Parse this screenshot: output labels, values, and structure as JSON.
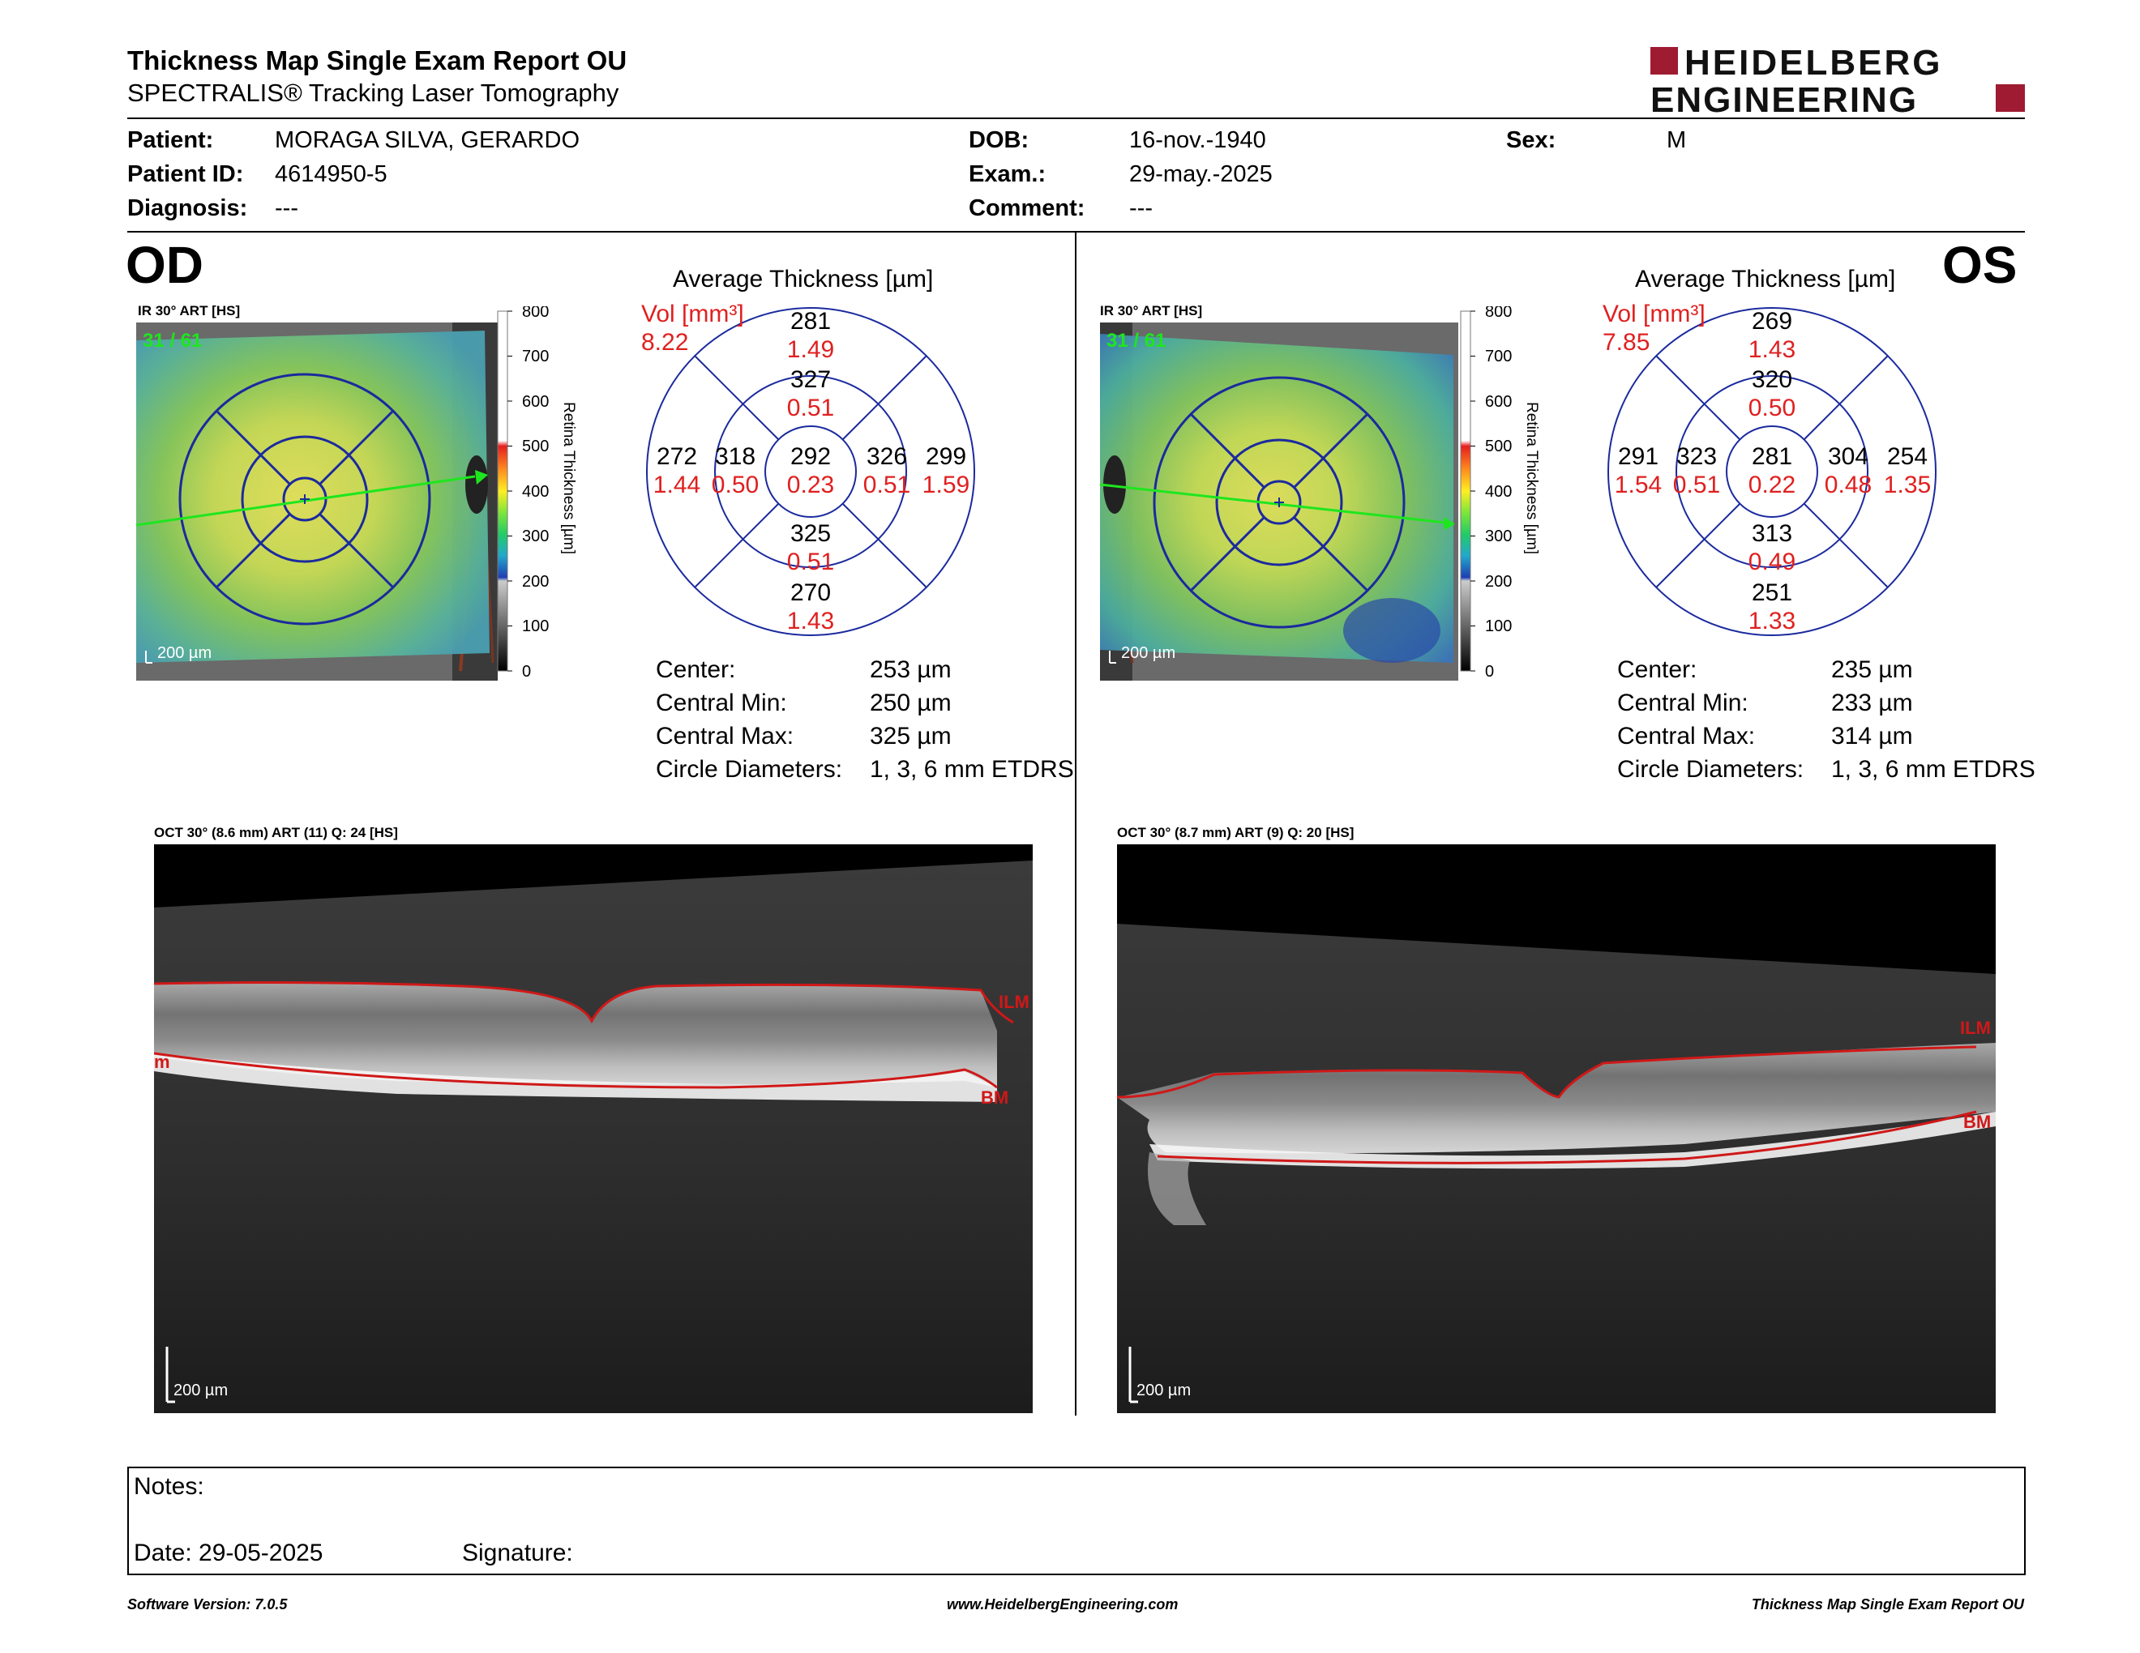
{
  "header": {
    "title": "Thickness Map Single Exam Report OU",
    "subtitle": "SPECTRALIS® Tracking Laser Tomography",
    "logo_line1": "HEIDELBERG",
    "logo_line2": "ENGINEERING",
    "brand_color": "#9e1b32"
  },
  "patient": {
    "patient_label": "Patient:",
    "patient_value": "MORAGA SILVA, GERARDO",
    "id_label": "Patient ID:",
    "id_value": "4614950-5",
    "diagnosis_label": "Diagnosis:",
    "diagnosis_value": "---",
    "dob_label": "DOB:",
    "dob_value": "16-nov.-1940",
    "exam_label": "Exam.:",
    "exam_value": "29-may.-2025",
    "comment_label": "Comment:",
    "comment_value": "---",
    "sex_label": "Sex:",
    "sex_value": "M"
  },
  "scale": {
    "ticks": [
      "800",
      "700",
      "600",
      "500",
      "400",
      "300",
      "200",
      "100",
      "0"
    ],
    "label": "Retina Thickness [µm]"
  },
  "od": {
    "eye": "OD",
    "ir_label": "IR 30° ART [HS]",
    "frame": "31 / 61",
    "scalebar": "200 µm",
    "avg_title": "Average Thickness [µm]",
    "vol_label": "Vol [mm³]",
    "vol_value": "8.22",
    "grid": {
      "center_t": "292",
      "center_v": "0.23",
      "inner_sup_t": "327",
      "inner_sup_v": "0.51",
      "inner_inf_t": "325",
      "inner_inf_v": "0.51",
      "inner_left_t": "318",
      "inner_left_v": "0.50",
      "inner_right_t": "326",
      "inner_right_v": "0.51",
      "outer_sup_t": "281",
      "outer_sup_v": "1.49",
      "outer_inf_t": "270",
      "outer_inf_v": "1.43",
      "outer_left_t": "272",
      "outer_left_v": "1.44",
      "outer_right_t": "299",
      "outer_right_v": "1.59"
    },
    "stats": {
      "center_label": "Center:",
      "center_value": "253 µm",
      "min_label": "Central Min:",
      "min_value": "250 µm",
      "max_label": "Central Max:",
      "max_value": "325 µm",
      "diam_label": "Circle Diameters:",
      "diam_value": "1, 3, 6 mm ETDRS"
    },
    "oct_label": "OCT 30° (8.6 mm) ART (11) Q: 24 [HS]",
    "oct_scalebar": "200 µm",
    "ilm": "ILM",
    "bm": "BM",
    "edge_label": "m"
  },
  "os": {
    "eye": "OS",
    "ir_label": "IR 30° ART [HS]",
    "frame": "31 / 61",
    "scalebar": "200 µm",
    "avg_title": "Average Thickness [µm]",
    "vol_label": "Vol [mm³]",
    "vol_value": "7.85",
    "grid": {
      "center_t": "281",
      "center_v": "0.22",
      "inner_sup_t": "320",
      "inner_sup_v": "0.50",
      "inner_inf_t": "313",
      "inner_inf_v": "0.49",
      "inner_left_t": "323",
      "inner_left_v": "0.51",
      "inner_right_t": "304",
      "inner_right_v": "0.48",
      "outer_sup_t": "269",
      "outer_sup_v": "1.43",
      "outer_inf_t": "251",
      "outer_inf_v": "1.33",
      "outer_left_t": "291",
      "outer_left_v": "1.54",
      "outer_right_t": "254",
      "outer_right_v": "1.35"
    },
    "stats": {
      "center_label": "Center:",
      "center_value": "235 µm",
      "min_label": "Central Min:",
      "min_value": "233 µm",
      "max_label": "Central Max:",
      "max_value": "314 µm",
      "diam_label": "Circle Diameters:",
      "diam_value": "1, 3, 6 mm ETDRS"
    },
    "oct_label": "OCT 30° (8.7 mm) ART (9) Q: 20 [HS]",
    "oct_scalebar": "200 µm",
    "ilm": "ILM",
    "bm": "BM"
  },
  "notes": {
    "notes_label": "Notes:",
    "date_label": "Date: 29-05-2025",
    "signature_label": "Signature:"
  },
  "footer": {
    "software": "Software Version: 7.0.5",
    "website": "www.HeidelbergEngineering.com",
    "report": "Thickness Map Single Exam Report OU"
  }
}
